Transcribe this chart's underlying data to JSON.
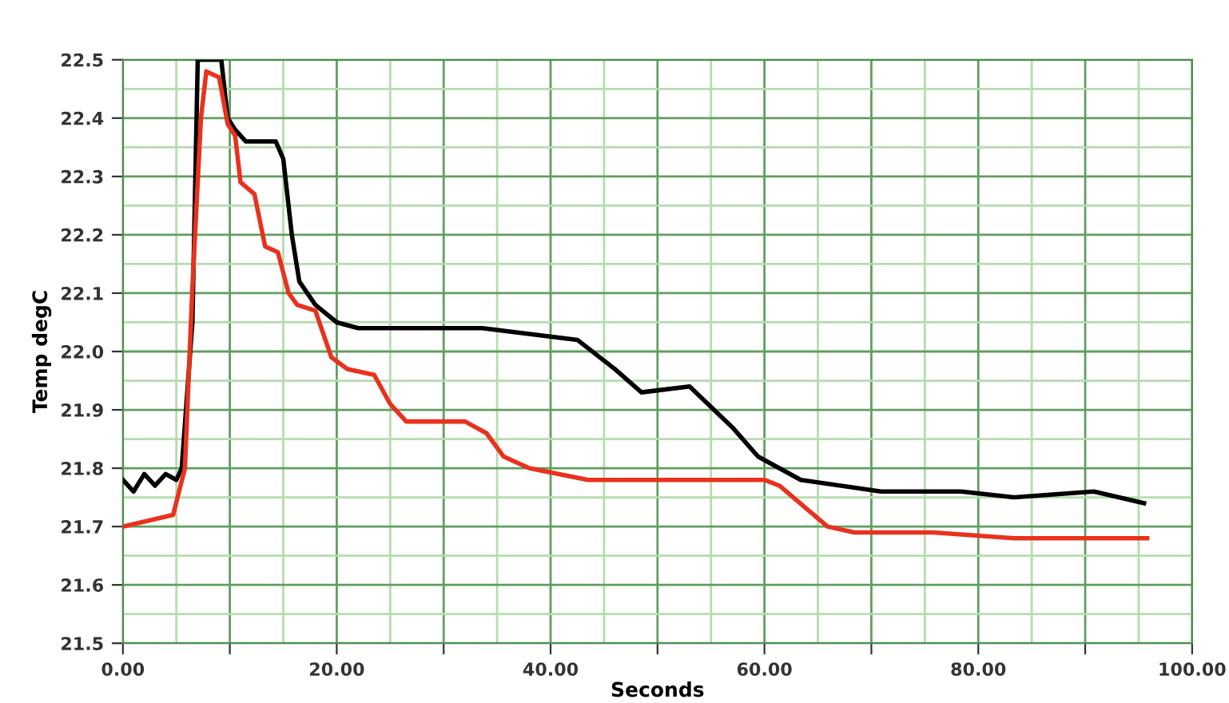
{
  "chart_data": {
    "type": "line",
    "xlabel": "Seconds",
    "ylabel": "Temp degC",
    "xlim": [
      0,
      100
    ],
    "ylim": [
      21.5,
      22.5
    ],
    "xticks": [
      {
        "value": 0,
        "label": "0.00"
      },
      {
        "value": 5,
        "label": null
      },
      {
        "value": 10,
        "label": null
      },
      {
        "value": 15,
        "label": null
      },
      {
        "value": 20,
        "label": "20.00"
      },
      {
        "value": 25,
        "label": null
      },
      {
        "value": 30,
        "label": null
      },
      {
        "value": 35,
        "label": null
      },
      {
        "value": 40,
        "label": "40.00"
      },
      {
        "value": 45,
        "label": null
      },
      {
        "value": 50,
        "label": null
      },
      {
        "value": 55,
        "label": null
      },
      {
        "value": 60,
        "label": "60.00"
      },
      {
        "value": 65,
        "label": null
      },
      {
        "value": 70,
        "label": null
      },
      {
        "value": 75,
        "label": null
      },
      {
        "value": 80,
        "label": "80.00"
      },
      {
        "value": 85,
        "label": null
      },
      {
        "value": 90,
        "label": null
      },
      {
        "value": 95,
        "label": null
      },
      {
        "value": 100,
        "label": "100.00"
      }
    ],
    "yticks": [
      21.5,
      {
        "value": 21.55,
        "label": null
      },
      21.6,
      {
        "value": 21.65,
        "label": null
      },
      21.7,
      {
        "value": 21.75,
        "label": null
      },
      21.8,
      {
        "value": 21.85,
        "label": null
      },
      21.9,
      {
        "value": 21.95,
        "label": null
      },
      {
        "value": 22.0,
        "label": "22.0"
      },
      {
        "value": 22.05,
        "label": null
      },
      22.1,
      {
        "value": 22.15,
        "label": null
      },
      22.2,
      {
        "value": 22.25,
        "label": null
      },
      22.3,
      {
        "value": 22.35,
        "label": null
      },
      22.4,
      {
        "value": 22.45,
        "label": null
      },
      22.5
    ],
    "grid": true,
    "marker": "none",
    "line_style": "solid",
    "series": [
      {
        "color": "#000000",
        "x": [
          0,
          1,
          2,
          3,
          4,
          5,
          5.5,
          6.5,
          7,
          9.2,
          9.8,
          10.5,
          11.5,
          14.3,
          15,
          15.8,
          16.5,
          18,
          20,
          22,
          33.6,
          42.5,
          46,
          48.5,
          53,
          57,
          59.4,
          63.4,
          70.9,
          78.4,
          83.3,
          90.8,
          95.5
        ],
        "values": [
          21.78,
          21.76,
          21.79,
          21.77,
          21.79,
          21.78,
          21.8,
          22.05,
          22.5,
          22.5,
          22.4,
          22.38,
          22.36,
          22.36,
          22.33,
          22.2,
          22.12,
          22.08,
          22.05,
          22.04,
          22.04,
          22.02,
          21.97,
          21.93,
          21.94,
          21.87,
          21.82,
          21.78,
          21.76,
          21.76,
          21.75,
          21.76,
          21.74
        ]
      },
      {
        "color": "#e8321e",
        "x": [
          0,
          4.7,
          5.8,
          6.5,
          7.3,
          7.8,
          9,
          9.8,
          10.5,
          11,
          12.3,
          13.3,
          14.5,
          15.5,
          16.3,
          18,
          19.5,
          21,
          23.5,
          25,
          26.5,
          32,
          34,
          35.6,
          38,
          43.5,
          60,
          61.4,
          65.9,
          68.4,
          75.8,
          83.3,
          95.8
        ],
        "values": [
          21.7,
          21.72,
          21.8,
          22.11,
          22.4,
          22.48,
          22.47,
          22.39,
          22.37,
          22.29,
          22.27,
          22.18,
          22.17,
          22.1,
          22.08,
          22.07,
          21.99,
          21.97,
          21.96,
          21.91,
          21.88,
          21.88,
          21.86,
          21.82,
          21.8,
          21.78,
          21.78,
          21.77,
          21.7,
          21.69,
          21.69,
          21.68,
          21.68
        ]
      }
    ]
  }
}
